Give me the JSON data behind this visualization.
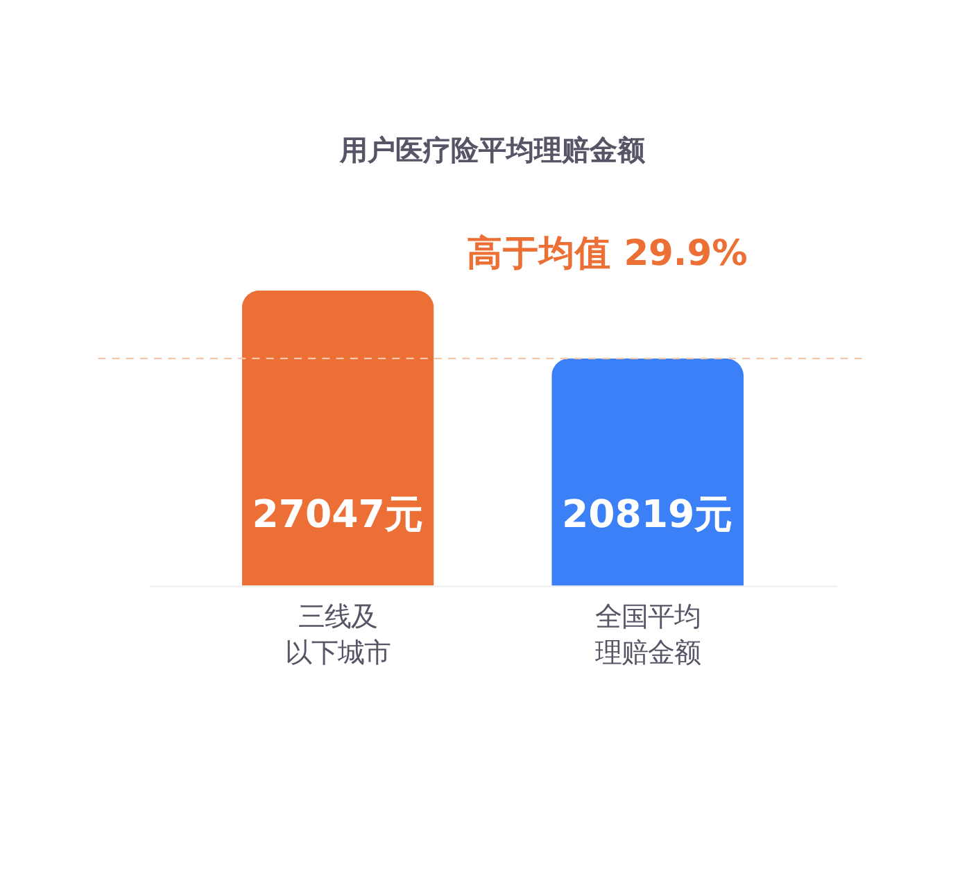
{
  "chart_data": {
    "type": "bar",
    "title": "用户医疗险平均理赔金额",
    "categories": [
      "三线及以下城市",
      "全国平均理赔金额"
    ],
    "values": [
      27047,
      20819
    ],
    "colors": [
      "#ec6f35",
      "#3b80f6"
    ],
    "value_labels": [
      "27047元",
      "20819元"
    ],
    "ref_lines": [
      {
        "axis": "y",
        "value": 20819,
        "color": "#f4c7ad",
        "line_style": "dashed"
      }
    ],
    "annotations": [
      "高于均值 29.9%"
    ],
    "grid": false
  }
}
